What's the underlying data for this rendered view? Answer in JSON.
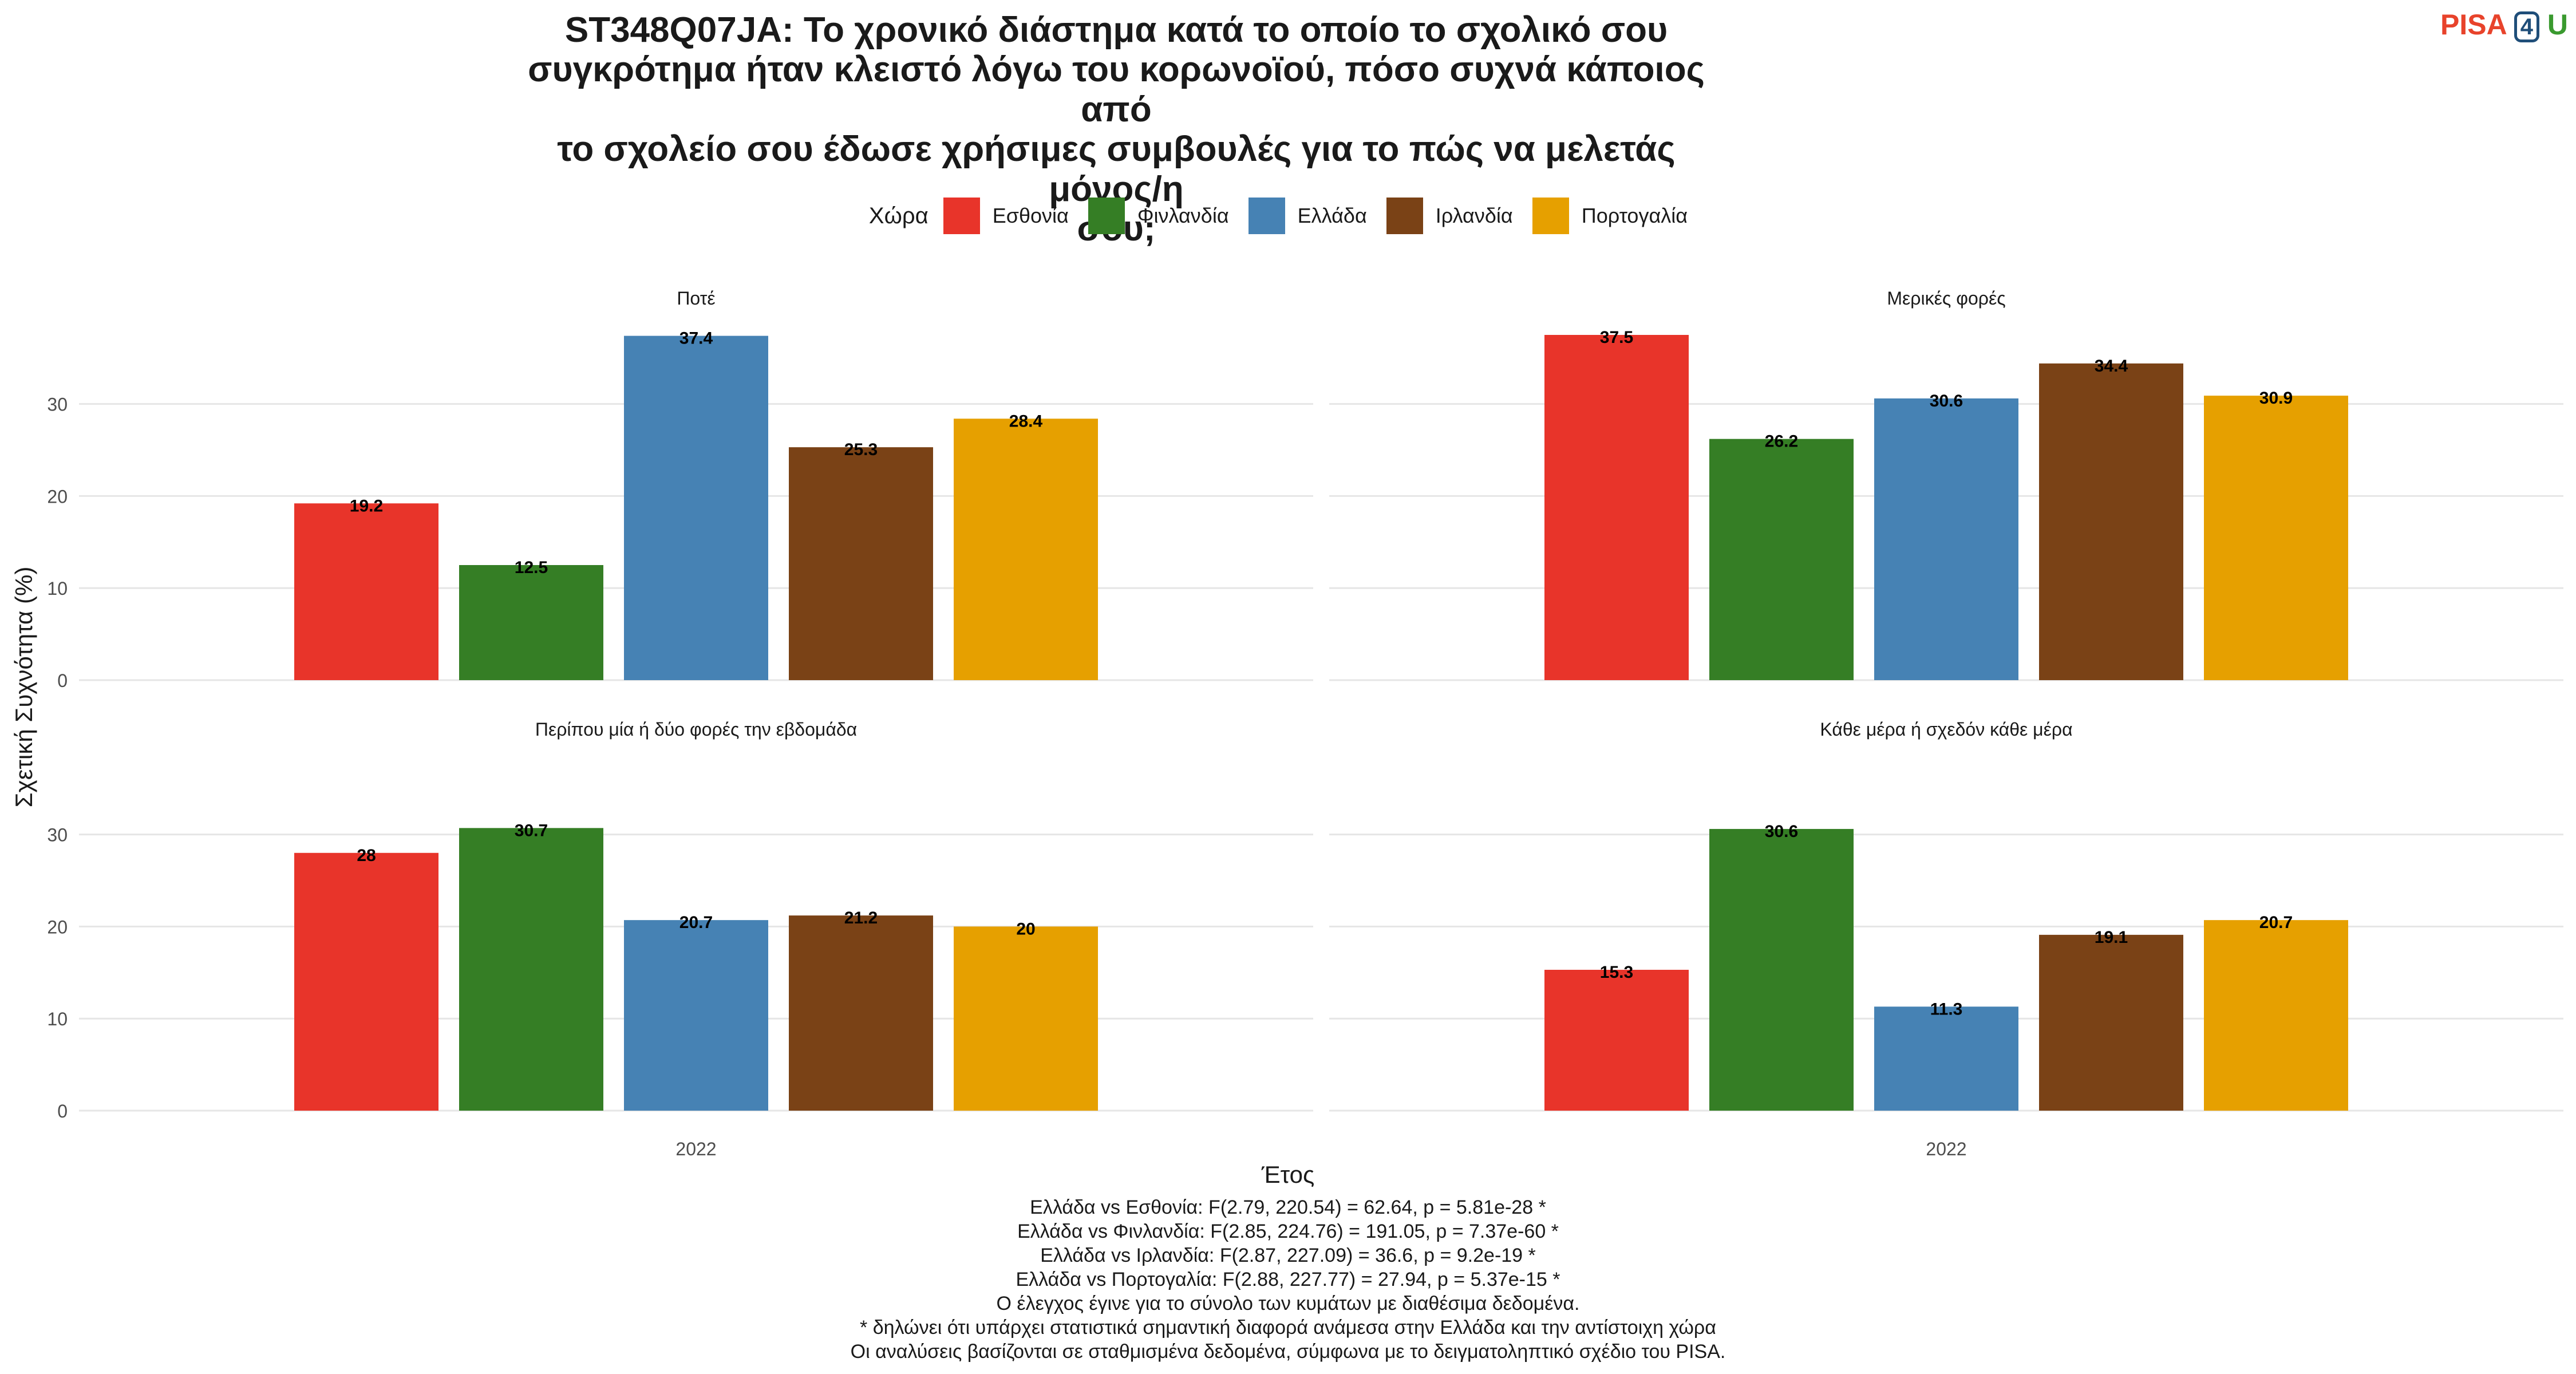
{
  "title": "ST348Q07JA: Το χρονικό διάστημα κατά το οποίο το σχολικό σου\nσυγκρότημα ήταν κλειστό λόγω του κορωνοϊού, πόσο συχνά κάποιος από\nτο σχολείο σου έδωσε χρήσιμες συμβουλές για το πώς να μελετάς μόνος/η\nσου;",
  "logo": {
    "pisa": "PISA",
    "four": "4",
    "u": "U"
  },
  "legend": {
    "title": "Χώρα",
    "placement": "top"
  },
  "colors": {
    "Εσθονία": "#e8342a",
    "Φινλανδία": "#357e25",
    "Ελλάδα": "#4682b4",
    "Ιρλανδία": "#7a4216",
    "Πορτογαλία": "#e6a000"
  },
  "chart_data": {
    "type": "bar",
    "xlabel": "Έτος",
    "ylabel": "Σχετική Συχνότητα (%)",
    "ylim": [
      0,
      40
    ],
    "yticks": [
      0,
      10,
      20,
      30
    ],
    "grid": true,
    "categories": [
      "2022"
    ],
    "series_names": [
      "Εσθονία",
      "Φινλανδία",
      "Ελλάδα",
      "Ιρλανδία",
      "Πορτογαλία"
    ],
    "panels": [
      {
        "title": "Ποτέ",
        "values": [
          19.2,
          12.5,
          37.4,
          25.3,
          28.4
        ],
        "labels": [
          "19.2",
          "12.5",
          "37.4",
          "25.3",
          "28.4"
        ]
      },
      {
        "title": "Μερικές φορές",
        "values": [
          37.5,
          26.2,
          30.6,
          34.4,
          30.9
        ],
        "labels": [
          "37.5",
          "26.2",
          "30.6",
          "34.4",
          "30.9"
        ]
      },
      {
        "title": "Περίπου μία ή δύο φορές την εβδομάδα",
        "values": [
          28,
          30.7,
          20.7,
          21.2,
          20
        ],
        "labels": [
          "28",
          "30.7",
          "20.7",
          "21.2",
          "20"
        ]
      },
      {
        "title": "Κάθε μέρα ή σχεδόν κάθε μέρα",
        "values": [
          15.3,
          30.6,
          11.3,
          19.1,
          20.7
        ],
        "labels": [
          "15.3",
          "30.6",
          "11.3",
          "19.1",
          "20.7"
        ]
      }
    ]
  },
  "notes": [
    "Ελλάδα vs Εσθονία: F(2.79, 220.54) = 62.64, p = 5.81e-28 *",
    "Ελλάδα vs Φινλανδία: F(2.85, 224.76) = 191.05, p = 7.37e-60 *",
    "Ελλάδα vs Ιρλανδία: F(2.87, 227.09) = 36.6, p = 9.2e-19 *",
    "Ελλάδα vs Πορτογαλία: F(2.88, 227.77) = 27.94, p = 5.37e-15 *",
    "Ο έλεγχος έγινε για το σύνολο των κυμάτων με διαθέσιμα δεδομένα.",
    "* δηλώνει ότι υπάρχει στατιστικά σημαντική διαφορά ανάμεσα στην Ελλάδα και την αντίστοιχη χώρα",
    "Οι αναλύσεις βασίζονται σε σταθμισμένα δεδομένα, σύμφωνα με το δειγματοληπτικό σχέδιο του PISA."
  ]
}
